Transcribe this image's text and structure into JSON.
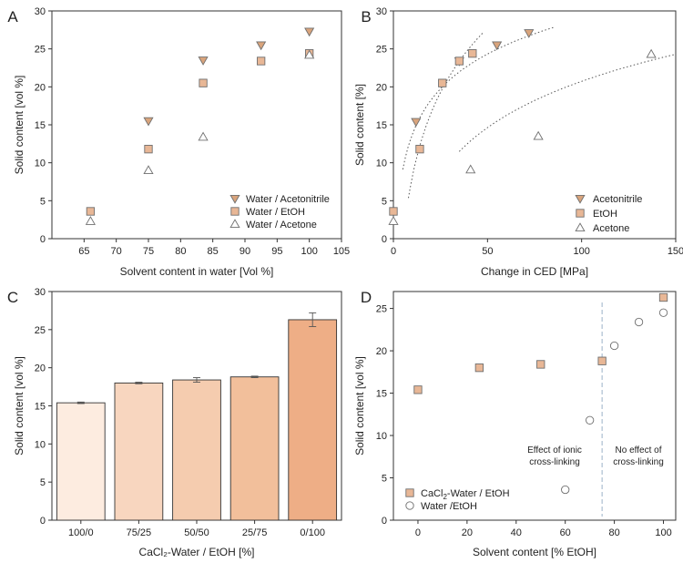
{
  "chart_data": [
    {
      "panel": "A",
      "type": "scatter",
      "xlabel": "Solvent content in water [Vol %]",
      "ylabel": "Solid content [vol %]",
      "xlim": [
        60,
        105
      ],
      "ylim": [
        0,
        30
      ],
      "xticks": [
        65,
        70,
        75,
        80,
        85,
        90,
        95,
        100,
        105
      ],
      "yticks": [
        0,
        5,
        10,
        15,
        20,
        25,
        30
      ],
      "legend_position": "bottom-right",
      "series": [
        {
          "name": "Water / Acetonitrile",
          "marker": "triangle-down",
          "color": "#d9a47c",
          "x": [
            75,
            83.5,
            92.5,
            100
          ],
          "y": [
            15.5,
            23.5,
            25.5,
            27.3
          ]
        },
        {
          "name": "Water / EtOH",
          "marker": "square",
          "color": "#e8b796",
          "x": [
            66,
            75,
            83.5,
            92.5,
            100
          ],
          "y": [
            3.6,
            11.8,
            20.5,
            23.4,
            24.4
          ]
        },
        {
          "name": "Water / Acetone",
          "marker": "triangle-up",
          "color": "#ffffff",
          "x": [
            66,
            75,
            83.5,
            100
          ],
          "y": [
            2.3,
            9.0,
            13.4,
            24.2
          ]
        }
      ]
    },
    {
      "panel": "B",
      "type": "scatter",
      "xlabel": "Change in CED [MPa]",
      "ylabel": "Solid content [%]",
      "xlim": [
        0,
        150
      ],
      "ylim": [
        0,
        30
      ],
      "xticks": [
        0,
        50,
        100,
        150
      ],
      "yticks": [
        0,
        5,
        10,
        15,
        20,
        25,
        30
      ],
      "legend_position": "bottom-right",
      "series": [
        {
          "name": "Acetonitrile",
          "marker": "triangle-down",
          "color": "#d9a47c",
          "x": [
            12,
            35,
            55,
            72
          ],
          "y": [
            15.4,
            23.4,
            25.5,
            27.1
          ]
        },
        {
          "name": "EtOH",
          "marker": "square",
          "color": "#e8b796",
          "x": [
            0,
            14,
            26,
            35,
            42
          ],
          "y": [
            3.6,
            11.8,
            20.5,
            23.4,
            24.4
          ]
        },
        {
          "name": "Acetone",
          "marker": "triangle-up",
          "color": "#ffffff",
          "x": [
            0,
            41,
            77,
            137
          ],
          "y": [
            2.3,
            9.1,
            13.5,
            24.3
          ]
        }
      ]
    },
    {
      "panel": "C",
      "type": "bar",
      "xlabel": "CaCl₂-Water / EtOH [%]",
      "ylabel": "Solid content [vol %]",
      "ylim": [
        0,
        30
      ],
      "yticks": [
        0,
        5,
        10,
        15,
        20,
        25,
        30
      ],
      "categories": [
        "100/0",
        "75/25",
        "50/50",
        "25/75",
        "0/100"
      ],
      "values": [
        15.4,
        18.0,
        18.4,
        18.8,
        26.3
      ],
      "errors": [
        0.1,
        0.1,
        0.3,
        0.1,
        0.9
      ],
      "colors": [
        "#fdece0",
        "#f8d6bf",
        "#f5ccaf",
        "#f2bf9b",
        "#eeae86"
      ]
    },
    {
      "panel": "D",
      "type": "scatter",
      "xlabel": "Solvent content [% EtOH]",
      "ylabel": "Solid content [vol %]",
      "xlim": [
        -10,
        105
      ],
      "ylim": [
        0,
        27
      ],
      "xticks": [
        0,
        20,
        40,
        60,
        80,
        100
      ],
      "yticks": [
        0,
        5,
        10,
        15,
        20,
        25
      ],
      "legend_position": "bottom-left",
      "divider_x": 75,
      "annotations": [
        {
          "lines": [
            "Effect of ionic",
            "cross-linking"
          ]
        },
        {
          "lines": [
            "No effect of",
            "cross-linking"
          ]
        }
      ],
      "series": [
        {
          "name_main": "CaCl",
          "name_sub": "2",
          "name_rest": "-Water / EtOH",
          "marker": "square",
          "color": "#e8b796",
          "x": [
            0,
            25,
            50,
            75,
            100
          ],
          "y": [
            15.4,
            18.0,
            18.4,
            18.8,
            26.3
          ]
        },
        {
          "name": "Water /EtOH",
          "marker": "circle",
          "color": "#ffffff",
          "x": [
            60,
            70,
            80,
            90,
            100
          ],
          "y": [
            3.6,
            11.8,
            20.6,
            23.4,
            24.5
          ]
        }
      ]
    }
  ]
}
